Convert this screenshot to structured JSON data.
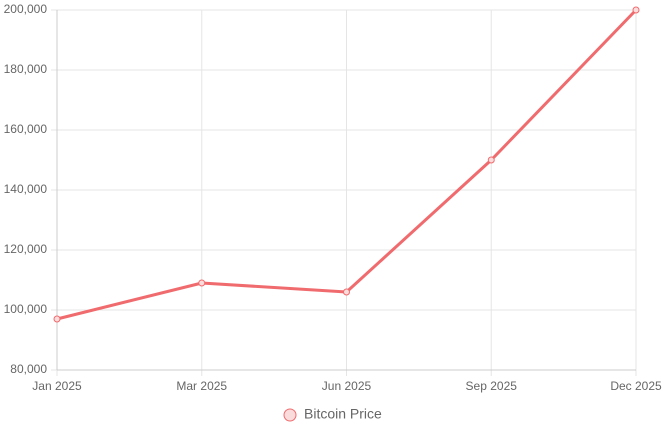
{
  "chart_data": {
    "type": "line",
    "categories": [
      "Jan 2025",
      "Mar 2025",
      "Jun 2025",
      "Sep 2025",
      "Dec 2025"
    ],
    "series": [
      {
        "name": "Bitcoin Price",
        "color": "#f06b6e",
        "values": [
          97000,
          109000,
          106000,
          150000,
          200000
        ]
      }
    ],
    "ylim": [
      80000,
      200000
    ],
    "yticks": [
      {
        "value": 80000,
        "label": "80,000"
      },
      {
        "value": 100000,
        "label": "100,000"
      },
      {
        "value": 120000,
        "label": "120,000"
      },
      {
        "value": 140000,
        "label": "140,000"
      },
      {
        "value": 160000,
        "label": "160,000"
      },
      {
        "value": 180000,
        "label": "180,000"
      },
      {
        "value": 200000,
        "label": "200,000"
      }
    ],
    "grid": true,
    "legend": "bottom"
  }
}
